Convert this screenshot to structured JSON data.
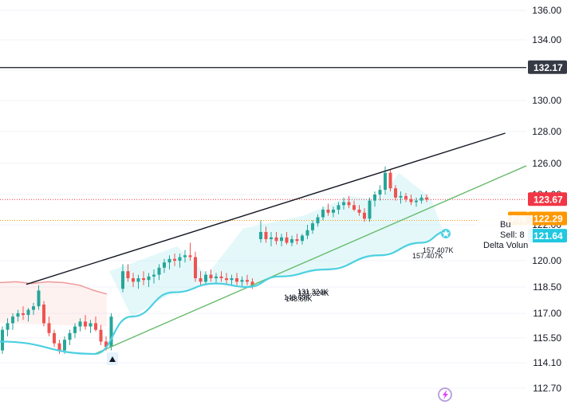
{
  "chart_data": {
    "type": "candlestick",
    "y_axis": {
      "ticks": [
        "136.00",
        "134.00",
        "132.00",
        "130.00",
        "128.00",
        "126.00",
        "124.00",
        "122.00",
        "120.00",
        "118.50",
        "117.00",
        "115.50",
        "114.10",
        "112.70"
      ],
      "range": [
        112.0,
        137.0
      ]
    },
    "price_badges": [
      {
        "label": "132.17",
        "value": 132.17,
        "color": "#363a45"
      },
      {
        "label": "123.67",
        "value": 123.67,
        "color": "#f23645"
      },
      {
        "label": "122.29",
        "value": 122.29,
        "color": "#ff9800",
        "prefix": "Pre"
      },
      {
        "label": "121.64",
        "value": 121.64,
        "color": "#22c7e0"
      }
    ],
    "horizontal_line": 132.17,
    "dotted_levels": [
      123.67,
      122.29
    ],
    "trendlines": [
      {
        "name": "upper-channel",
        "color": "#131722",
        "from": [
          0.05,
          118.65
        ],
        "to": [
          0.96,
          127.9
        ]
      },
      {
        "name": "lower-channel",
        "color": "#66bb6a",
        "from": [
          0.18,
          114.6
        ],
        "to": [
          1.0,
          125.85
        ]
      }
    ],
    "candles": [
      [
        114.8,
        116.2,
        114.6,
        116.0
      ],
      [
        116.0,
        116.7,
        115.6,
        116.4
      ],
      [
        116.4,
        117.0,
        116.0,
        116.8
      ],
      [
        116.8,
        117.2,
        116.5,
        117.0
      ],
      [
        117.0,
        117.4,
        116.6,
        116.9
      ],
      [
        116.9,
        117.3,
        116.5,
        117.2
      ],
      [
        117.2,
        117.6,
        116.9,
        117.4
      ],
      [
        117.4,
        118.6,
        117.2,
        118.3
      ],
      [
        117.5,
        117.7,
        116.2,
        116.4
      ],
      [
        116.4,
        116.8,
        115.6,
        115.8
      ],
      [
        115.8,
        116.0,
        115.0,
        115.2
      ],
      [
        115.2,
        115.4,
        114.6,
        114.8
      ],
      [
        114.8,
        115.6,
        114.6,
        115.4
      ],
      [
        115.4,
        116.0,
        115.1,
        115.8
      ],
      [
        115.8,
        116.4,
        115.5,
        116.2
      ],
      [
        116.2,
        116.7,
        115.9,
        116.5
      ],
      [
        116.5,
        116.9,
        116.0,
        116.2
      ],
      [
        116.2,
        116.6,
        115.8,
        116.4
      ],
      [
        116.4,
        116.8,
        115.9,
        116.0
      ],
      [
        116.0,
        116.3,
        115.1,
        115.3
      ],
      [
        115.3,
        115.6,
        114.8,
        115.0
      ],
      [
        115.0,
        117.0,
        114.8,
        116.8
      ],
      [
        118.4,
        119.8,
        118.2,
        119.4
      ],
      [
        119.4,
        119.8,
        118.8,
        119.0
      ],
      [
        119.0,
        119.3,
        118.5,
        118.8
      ],
      [
        118.8,
        119.2,
        118.4,
        119.0
      ],
      [
        119.0,
        119.4,
        118.6,
        118.9
      ],
      [
        118.9,
        119.3,
        118.5,
        119.1
      ],
      [
        119.1,
        119.5,
        118.7,
        119.2
      ],
      [
        119.2,
        119.8,
        118.9,
        119.6
      ],
      [
        119.6,
        120.1,
        119.3,
        119.9
      ],
      [
        119.9,
        120.3,
        119.5,
        120.1
      ],
      [
        120.1,
        120.4,
        119.7,
        120.0
      ],
      [
        120.0,
        120.4,
        119.6,
        120.2
      ],
      [
        120.2,
        120.6,
        119.9,
        120.3
      ],
      [
        120.3,
        121.0,
        120.0,
        120.2
      ],
      [
        120.2,
        120.5,
        118.8,
        119.0
      ],
      [
        119.0,
        119.4,
        118.6,
        118.8
      ],
      [
        118.8,
        119.4,
        118.6,
        119.2
      ],
      [
        119.2,
        119.5,
        118.8,
        119.0
      ],
      [
        119.0,
        119.3,
        118.7,
        119.1
      ],
      [
        119.1,
        119.4,
        118.8,
        119.0
      ],
      [
        119.0,
        119.3,
        118.7,
        118.9
      ],
      [
        118.9,
        119.2,
        118.6,
        119.0
      ],
      [
        119.0,
        119.3,
        118.6,
        118.8
      ],
      [
        118.8,
        119.1,
        118.5,
        118.9
      ],
      [
        118.9,
        119.2,
        118.6,
        118.8
      ],
      [
        118.8,
        119.0,
        118.4,
        118.6
      ],
      [
        121.2,
        122.3,
        121.0,
        121.6
      ],
      [
        121.6,
        121.9,
        121.0,
        121.2
      ],
      [
        121.2,
        121.6,
        120.8,
        121.3
      ],
      [
        121.3,
        121.6,
        120.9,
        121.1
      ],
      [
        121.1,
        121.5,
        120.8,
        121.3
      ],
      [
        121.3,
        121.6,
        120.9,
        121.0
      ],
      [
        121.0,
        121.4,
        120.8,
        121.2
      ],
      [
        121.2,
        121.5,
        120.9,
        121.1
      ],
      [
        121.1,
        121.5,
        120.9,
        121.4
      ],
      [
        121.4,
        122.0,
        121.2,
        121.7
      ],
      [
        121.7,
        122.3,
        121.5,
        122.1
      ],
      [
        122.1,
        122.7,
        121.9,
        122.5
      ],
      [
        122.5,
        123.2,
        122.3,
        123.0
      ],
      [
        123.0,
        123.4,
        122.6,
        122.8
      ],
      [
        122.8,
        123.2,
        122.5,
        123.0
      ],
      [
        123.0,
        123.5,
        122.7,
        123.3
      ],
      [
        123.3,
        123.8,
        123.0,
        123.5
      ],
      [
        123.5,
        123.9,
        123.1,
        123.3
      ],
      [
        123.3,
        123.6,
        122.9,
        123.0
      ],
      [
        123.0,
        123.3,
        122.6,
        122.8
      ],
      [
        122.8,
        123.1,
        122.2,
        122.4
      ],
      [
        122.4,
        123.8,
        122.2,
        123.6
      ],
      [
        123.6,
        124.2,
        123.2,
        124.0
      ],
      [
        124.0,
        124.6,
        123.6,
        124.3
      ],
      [
        124.3,
        125.8,
        124.0,
        125.4
      ],
      [
        125.4,
        125.6,
        124.2,
        124.4
      ],
      [
        124.4,
        124.6,
        123.6,
        123.8
      ],
      [
        123.8,
        124.2,
        123.4,
        123.9
      ],
      [
        123.9,
        124.1,
        123.5,
        123.7
      ],
      [
        123.7,
        124.0,
        123.3,
        123.5
      ],
      [
        123.5,
        123.8,
        123.2,
        123.6
      ],
      [
        123.6,
        124.0,
        123.4,
        123.8
      ],
      [
        123.8,
        124.0,
        123.5,
        123.67
      ]
    ],
    "vwap_curve": [
      [
        0.0,
        115.3
      ],
      [
        0.18,
        114.6
      ],
      [
        0.25,
        116.8
      ],
      [
        0.33,
        118.2
      ],
      [
        0.41,
        118.7
      ],
      [
        0.47,
        118.5
      ],
      [
        0.53,
        119.1
      ],
      [
        0.62,
        119.5
      ],
      [
        0.72,
        120.3
      ],
      [
        0.8,
        121.0
      ],
      [
        0.85,
        121.64
      ]
    ],
    "volume_labels": [
      {
        "text": "157.407K"
      },
      {
        "text": "157.407K"
      },
      {
        "text": "131.324K"
      },
      {
        "text": "131.324K"
      },
      {
        "text": "148.69K"
      },
      {
        "text": "148.69K"
      }
    ],
    "side_panel": {
      "buy_label": "Bu",
      "sell_label": "Sell: 8",
      "delta_label": "Delta Volun"
    },
    "colors": {
      "up": "#26a69a",
      "down": "#ef5350",
      "grid": "#f0f3fa",
      "upper_line": "#131722",
      "lower_line": "#66bb6a",
      "vwap": "#4dd0e1",
      "horizontal": "#131722"
    }
  }
}
